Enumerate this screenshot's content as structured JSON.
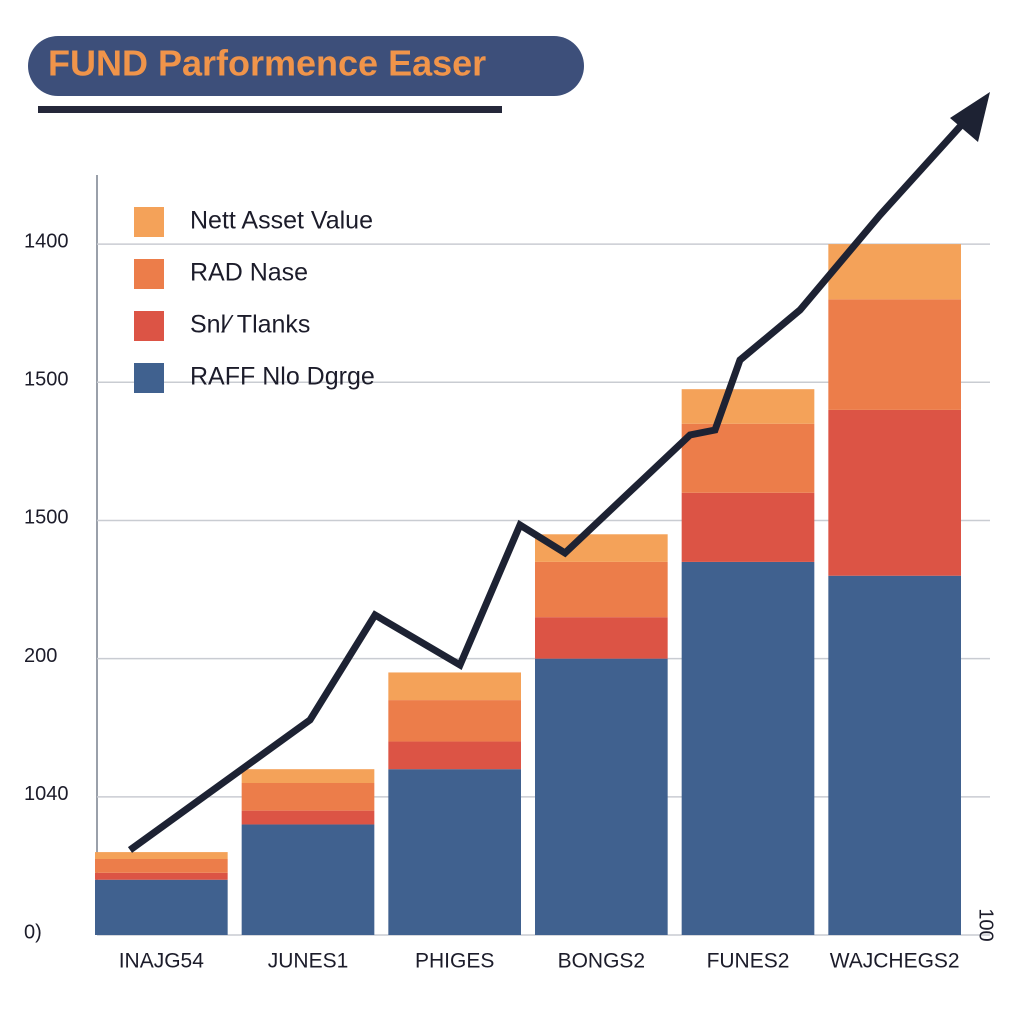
{
  "chart_data": {
    "type": "bar",
    "title": "FUND  Parformence Easer",
    "annotation": "100",
    "categories": [
      "INAJG54",
      "JUNES1",
      "PHIGES",
      "BONGS2",
      "FUNES2",
      "WAJCHEGS2"
    ],
    "series": [
      {
        "name": "Nett Asset Value",
        "color": "#f4a259",
        "values": [
          0.05,
          0.1,
          0.2,
          0.2,
          0.25,
          0.4
        ]
      },
      {
        "name": "RAD Nase",
        "color": "#ec7d4a",
        "values": [
          0.1,
          0.2,
          0.3,
          0.4,
          0.5,
          0.8
        ]
      },
      {
        "name": "Snl⁄ Tlanks",
        "color": "#dc5445",
        "values": [
          0.05,
          0.1,
          0.2,
          0.3,
          0.5,
          1.2
        ]
      },
      {
        "name": "RAFF Nlo Dgrge",
        "color": "#40618f",
        "values": [
          0.4,
          0.8,
          1.2,
          2.0,
          2.7,
          2.6
        ]
      }
    ],
    "ylim": [
      0,
      5.5
    ],
    "yticks": [
      {
        "value": 0,
        "label": "0)"
      },
      {
        "value": 1,
        "label": "1040"
      },
      {
        "value": 2,
        "label": "200"
      },
      {
        "value": 3,
        "label": "1500"
      },
      {
        "value": 4,
        "label": "1500"
      },
      {
        "value": 5,
        "label": "1400"
      }
    ],
    "grid": true,
    "stacked": true,
    "legend": "upper left"
  }
}
